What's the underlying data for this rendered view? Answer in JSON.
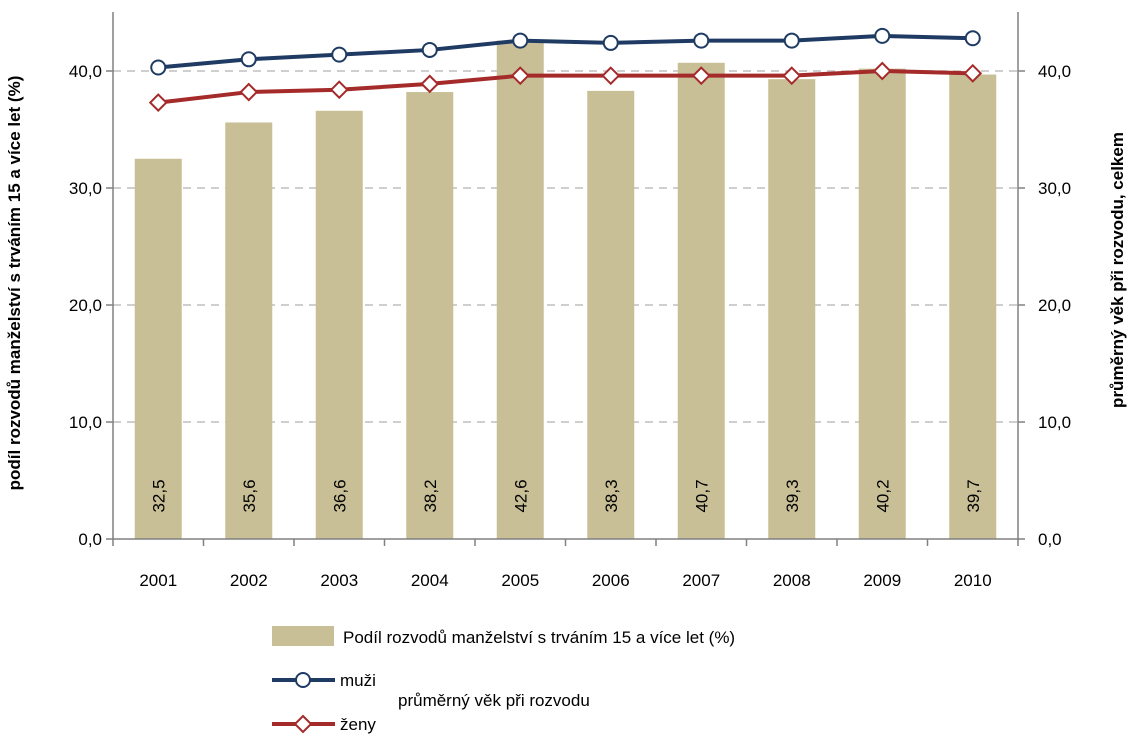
{
  "chart_data": {
    "type": "bar",
    "categories": [
      "2001",
      "2002",
      "2003",
      "2004",
      "2005",
      "2006",
      "2007",
      "2008",
      "2009",
      "2010"
    ],
    "series": [
      {
        "name": "Podíl rozvodů manželství s trváním 15 a více let (%)",
        "type": "bar",
        "axis": "left",
        "color": "#c8bf96",
        "values": [
          32.5,
          35.6,
          36.6,
          38.2,
          42.6,
          38.3,
          40.7,
          39.3,
          40.2,
          39.7
        ],
        "data_labels": [
          "32,5",
          "35,6",
          "36,6",
          "38,2",
          "42,6",
          "38,3",
          "40,7",
          "39,3",
          "40,2",
          "39,7"
        ]
      },
      {
        "name": "muži",
        "type": "line",
        "axis": "right",
        "color": "#1f3b63",
        "marker": "circle",
        "values": [
          40.3,
          41.0,
          41.4,
          41.8,
          42.6,
          42.4,
          42.6,
          42.6,
          43.0,
          42.8
        ]
      },
      {
        "name": "ženy",
        "type": "line",
        "axis": "right",
        "color": "#a52a2a",
        "marker": "diamond",
        "values": [
          37.3,
          38.2,
          38.4,
          38.9,
          39.6,
          39.6,
          39.6,
          39.6,
          40.0,
          39.8
        ]
      }
    ],
    "ylabel_left": "podíl rozvodů manželství s trváním 15 a více let (%)",
    "ylabel_right": "průměrný věk při rozvodu, celkem",
    "ylim": [
      0,
      40
    ],
    "y_ticks": [
      "0,0",
      "10,0",
      "20,0",
      "30,0",
      "40,0"
    ],
    "grid": true,
    "legend": {
      "placement": "bottom",
      "bar_label": "Podíl rozvodů manželství s trváním 15 a více let (%)",
      "line_labels": [
        "muži",
        "ženy"
      ],
      "line_group_label": "průměrný věk při rozvodu"
    }
  }
}
